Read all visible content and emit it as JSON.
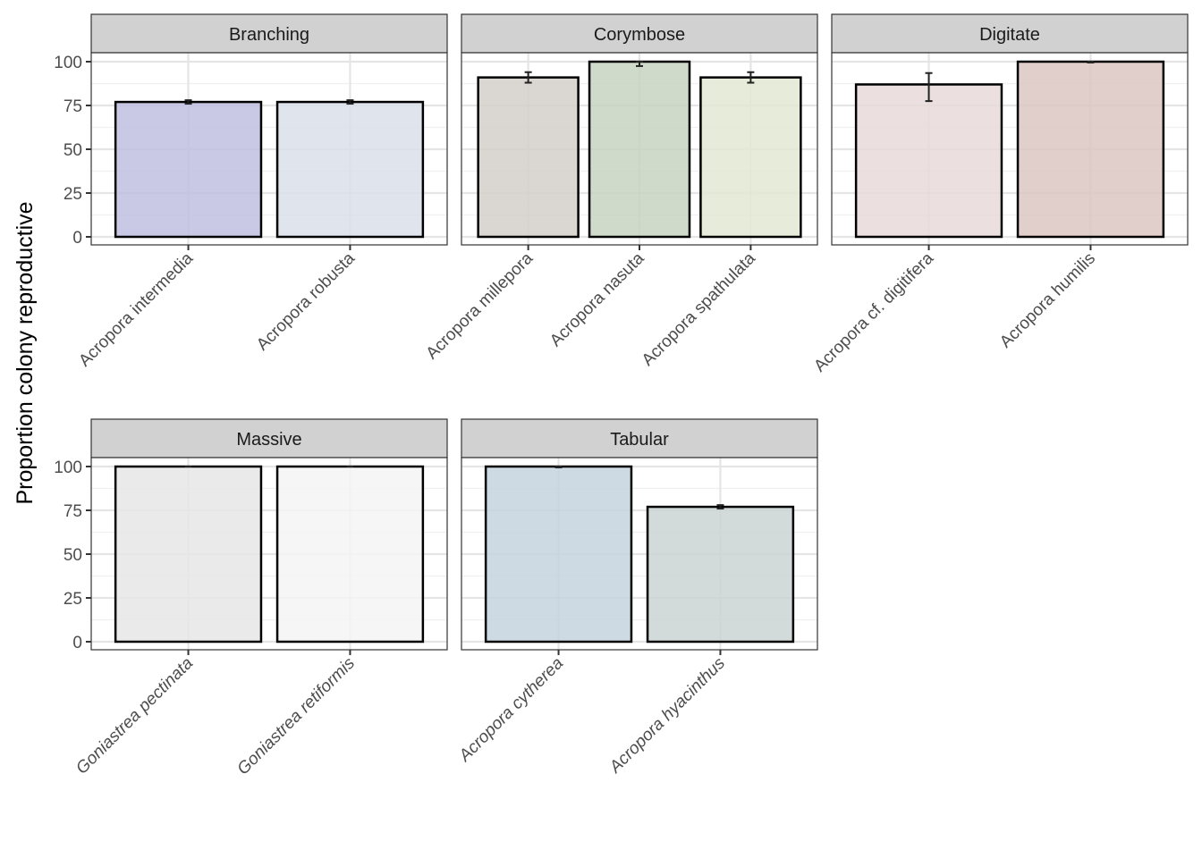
{
  "chart_data": {
    "type": "bar",
    "title": "",
    "ylabel": "Proportion colony reproductive",
    "xlabel": "",
    "ylim": [
      0,
      100
    ],
    "yticks": [
      0,
      25,
      50,
      75,
      100
    ],
    "grid": true,
    "facet_layout": "3 columns, 2 rows",
    "panels": [
      {
        "facet": "Branching",
        "italic_labels": false,
        "bars": [
          {
            "category": "Acropora intermedia",
            "value": 77,
            "err_low": 76,
            "err_high": 78,
            "fill": "#bfc0e0"
          },
          {
            "category": "Acropora robusta",
            "value": 77,
            "err_low": 76,
            "err_high": 78,
            "fill": "#dadfea"
          }
        ]
      },
      {
        "facet": "Corymbose",
        "italic_labels": false,
        "bars": [
          {
            "category": "Acropora millepora",
            "value": 91,
            "err_low": 88,
            "err_high": 94,
            "fill": "#d3cfc9"
          },
          {
            "category": "Acropora nasuta",
            "value": 100,
            "err_low": 97.5,
            "err_high": 100,
            "fill": "#c8d3c2"
          },
          {
            "category": "Acropora spathulata",
            "value": 91,
            "err_low": 88,
            "err_high": 94,
            "fill": "#e3e8d2"
          }
        ]
      },
      {
        "facet": "Digitate",
        "italic_labels": false,
        "bars": [
          {
            "category": "Acropora cf. digitifera",
            "value": 87,
            "err_low": 77.5,
            "err_high": 93.5,
            "fill": "#e8dad9"
          },
          {
            "category": "Acropora humilis",
            "value": 100,
            "err_low": 99.5,
            "err_high": 100,
            "fill": "#dbc7c2"
          }
        ]
      },
      {
        "facet": "Massive",
        "italic_labels": true,
        "bars": [
          {
            "category": "Goniastrea pectinata",
            "value": 100,
            "err_low": 100,
            "err_high": 100,
            "fill": "#e6e6e6"
          },
          {
            "category": "Goniastrea retiformis",
            "value": 100,
            "err_low": 100,
            "err_high": 100,
            "fill": "#f4f4f4"
          }
        ]
      },
      {
        "facet": "Tabular",
        "italic_labels": true,
        "bars": [
          {
            "category": "Acropora cytherea",
            "value": 100,
            "err_low": 99.5,
            "err_high": 100,
            "fill": "#c4d3df"
          },
          {
            "category": "Acropora hyacinthus",
            "value": 77,
            "err_low": 76,
            "err_high": 78,
            "fill": "#cbd3d4"
          }
        ]
      }
    ]
  },
  "colors": {
    "strip_bg": "#d1d1d1",
    "panel_border": "#333333",
    "grid_major": "#e5e5e5",
    "grid_minor": "#f0f0f0",
    "bar_outline": "#000000",
    "error_bar": "#222222"
  }
}
